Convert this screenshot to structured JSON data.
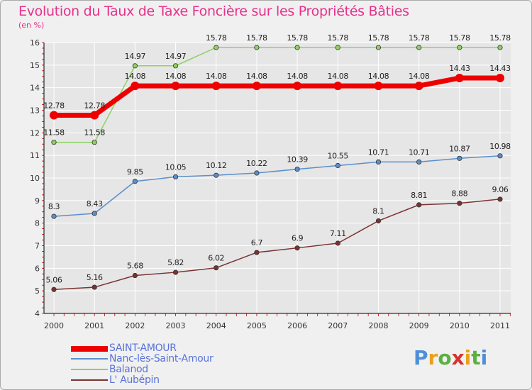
{
  "title": "Evolution du Taux de Taxe Foncière sur les Propriétés Bâties",
  "subtitle": "(en %)",
  "brand": "Proxiti",
  "colors": {
    "title": "#e8308a",
    "legend_text": "#5a73d8",
    "grid": "#ffffff",
    "axis": "#000000"
  },
  "chart_data": {
    "type": "line",
    "title": "Evolution du Taux de Taxe Foncière sur les Propriétés Bâties",
    "ylabel": "(en %)",
    "xlabel": "",
    "x": [
      "2000",
      "2001",
      "2002",
      "2003",
      "2004",
      "2005",
      "2006",
      "2007",
      "2008",
      "2009",
      "2010",
      "2011"
    ],
    "ylim": [
      4,
      16
    ],
    "yticks": [
      "4",
      "5",
      "6",
      "7",
      "8",
      "9",
      "10",
      "11",
      "12",
      "13",
      "14",
      "15",
      "16"
    ],
    "grid": true,
    "legend_position": "bottom-left",
    "series": [
      {
        "name": "SAINT-AMOUR",
        "color": "#ee0000",
        "values": [
          12.78,
          12.78,
          14.08,
          14.08,
          14.08,
          14.08,
          14.08,
          14.08,
          14.08,
          14.08,
          14.43,
          14.43
        ],
        "labels": [
          "12.78",
          "12.78",
          "14.08",
          "14.08",
          "14.08",
          "14.08",
          "14.08",
          "14.08",
          "14.08",
          "14.08",
          "14.43",
          "14.43"
        ]
      },
      {
        "name": "Nanc-lès-Saint-Amour",
        "color": "#5b8fc9",
        "values": [
          8.3,
          8.43,
          9.85,
          10.05,
          10.12,
          10.22,
          10.39,
          10.55,
          10.71,
          10.71,
          10.87,
          10.98
        ],
        "labels": [
          "8.3",
          "8.43",
          "9.85",
          "10.05",
          "10.12",
          "10.22",
          "10.39",
          "10.55",
          "10.71",
          "10.71",
          "10.87",
          "10.98"
        ]
      },
      {
        "name": "Balanod",
        "color": "#8ed163",
        "values": [
          11.58,
          11.58,
          14.97,
          14.97,
          15.78,
          15.78,
          15.78,
          15.78,
          15.78,
          15.78,
          15.78,
          15.78
        ],
        "labels": [
          "11.58",
          "11.58",
          "14.97",
          "14.97",
          "15.78",
          "15.78",
          "15.78",
          "15.78",
          "15.78",
          "15.78",
          "15.78",
          "15.78"
        ]
      },
      {
        "name": "L' Aubépin",
        "color": "#7a3333",
        "values": [
          5.06,
          5.16,
          5.68,
          5.82,
          6.02,
          6.7,
          6.9,
          7.11,
          8.1,
          8.81,
          8.88,
          9.06
        ],
        "labels": [
          "5.06",
          "5.16",
          "5.68",
          "5.82",
          "6.02",
          "6.7",
          "6.9",
          "7.11",
          "8.1",
          "8.81",
          "8.88",
          "9.06"
        ]
      }
    ]
  },
  "legend": [
    {
      "label": "SAINT-AMOUR",
      "color": "#ee0000"
    },
    {
      "label": "Nanc-lès-Saint-Amour",
      "color": "#5b8fc9"
    },
    {
      "label": "Balanod",
      "color": "#8ed163"
    },
    {
      "label": "L' Aubépin",
      "color": "#7a3333"
    }
  ]
}
